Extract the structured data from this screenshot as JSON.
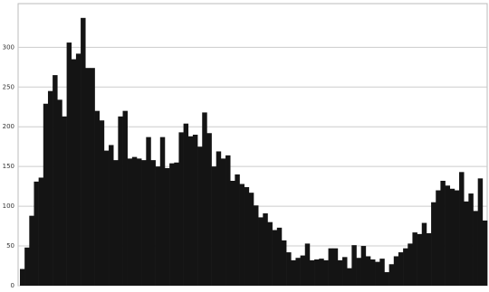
{
  "chart_data": {
    "type": "bar",
    "values": [
      21,
      48,
      88,
      131,
      136,
      229,
      245,
      265,
      234,
      213,
      306,
      285,
      292,
      337,
      274,
      274,
      220,
      208,
      170,
      177,
      158,
      213,
      220,
      160,
      162,
      160,
      158,
      187,
      158,
      150,
      187,
      148,
      154,
      155,
      193,
      204,
      188,
      190,
      175,
      218,
      192,
      150,
      169,
      160,
      164,
      132,
      140,
      128,
      124,
      117,
      101,
      86,
      91,
      80,
      70,
      73,
      57,
      42,
      32,
      35,
      38,
      53,
      32,
      33,
      34,
      32,
      47,
      47,
      32,
      36,
      22,
      51,
      35,
      50,
      37,
      33,
      30,
      34,
      17,
      27,
      37,
      42,
      47,
      53,
      67,
      65,
      79,
      66,
      105,
      120,
      132,
      126,
      122,
      120,
      143,
      106,
      116,
      94,
      135,
      82
    ],
    "color": "#141414",
    "ylim": [
      0,
      355
    ],
    "yticks": [
      0,
      50,
      100,
      150,
      200,
      250,
      300
    ],
    "grid": true
  }
}
